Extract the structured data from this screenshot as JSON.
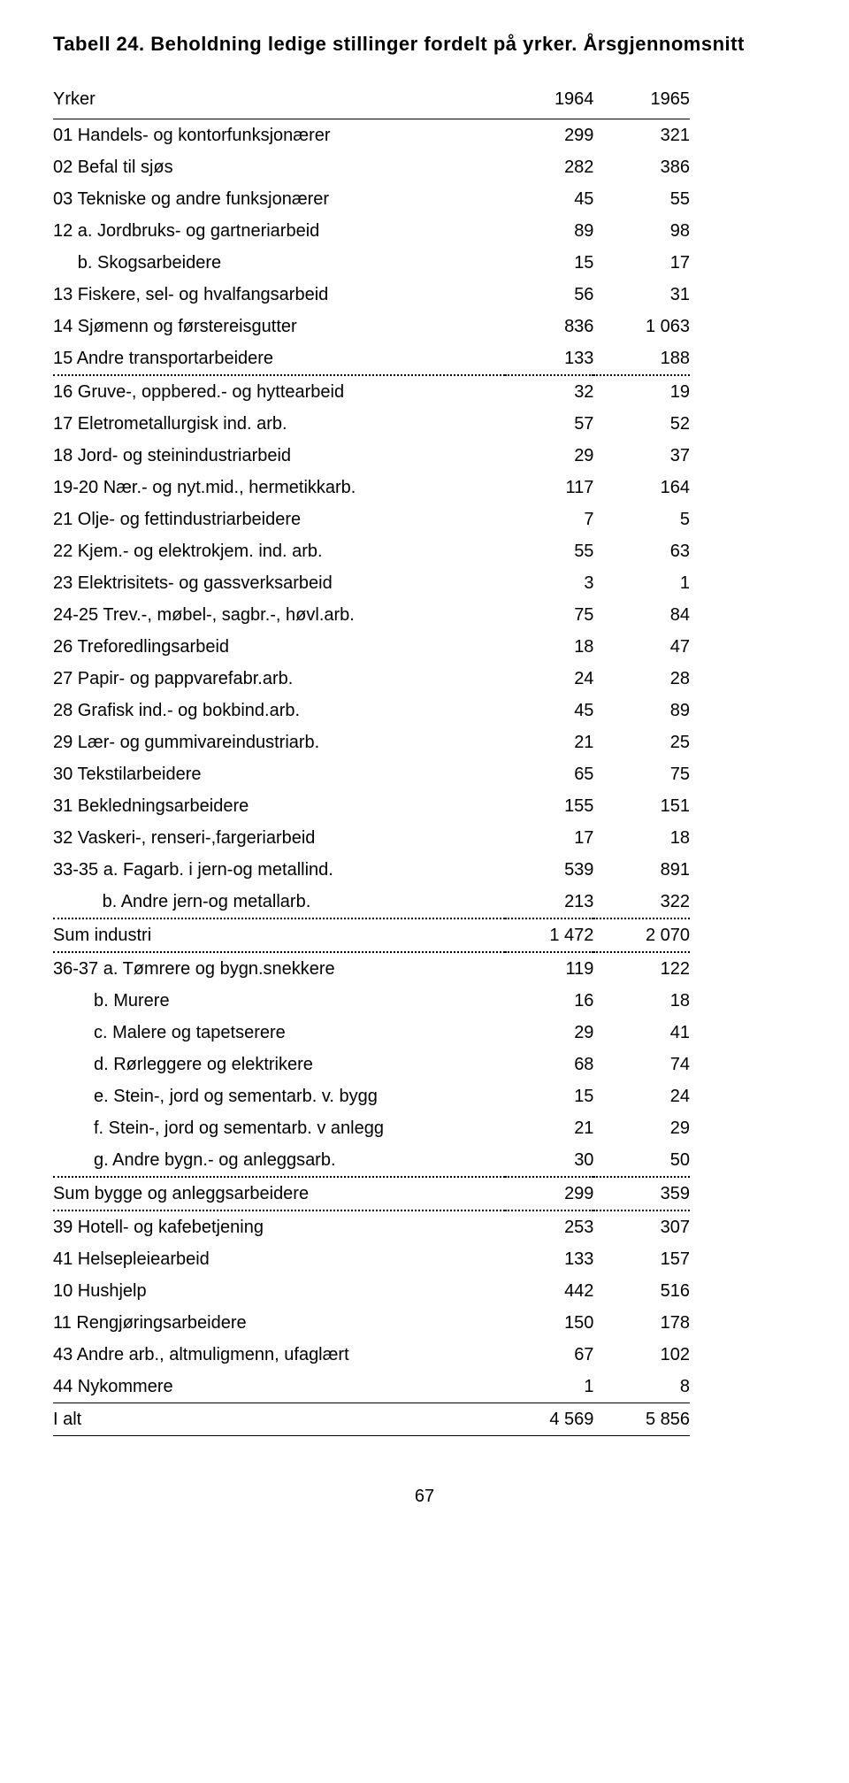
{
  "title": "Tabell 24. Beholdning ledige stillinger fordelt på yrker. Årsgjennomsnitt",
  "header": {
    "c0": "Yrker",
    "c1": "1964",
    "c2": "1965"
  },
  "rows": [
    {
      "label": "01 Handels- og kontorfunksjonærer",
      "v1": "299",
      "v2": "321"
    },
    {
      "label": "02 Befal til sjøs",
      "v1": "282",
      "v2": "386"
    },
    {
      "label": "03 Tekniske og andre funksjonærer",
      "v1": "45",
      "v2": "55"
    },
    {
      "label": "12 a. Jordbruks- og gartneriarbeid",
      "v1": "89",
      "v2": "98"
    },
    {
      "label": "     b. Skogsarbeidere",
      "v1": "15",
      "v2": "17"
    },
    {
      "label": "13 Fiskere, sel- og hvalfangsarbeid",
      "v1": "56",
      "v2": "31"
    },
    {
      "label": "14 Sjømenn og førstereisgutter",
      "v1": "836",
      "v2": "1 063"
    },
    {
      "label": "15 Andre transportarbeidere",
      "v1": "133",
      "v2": "188",
      "dotted": true
    },
    {
      "label": "16 Gruve-, oppbered.- og hyttearbeid",
      "v1": "32",
      "v2": "19"
    },
    {
      "label": "17 Eletrometallurgisk ind. arb.",
      "v1": "57",
      "v2": "52"
    },
    {
      "label": "18 Jord- og steinindustriarbeid",
      "v1": "29",
      "v2": "37"
    },
    {
      "label": "19-20 Nær.- og nyt.mid., hermetikkarb.",
      "v1": "117",
      "v2": "164"
    },
    {
      "label": "21 Olje- og fettindustriarbeidere",
      "v1": "7",
      "v2": "5"
    },
    {
      "label": "22 Kjem.- og elektrokjem. ind. arb.",
      "v1": "55",
      "v2": "63"
    },
    {
      "label": "23 Elektrisitets- og gassverksarbeid",
      "v1": "3",
      "v2": "1"
    },
    {
      "label": "24-25 Trev.-, møbel-, sagbr.-, høvl.arb.",
      "v1": "75",
      "v2": "84"
    },
    {
      "label": "26 Treforedlingsarbeid",
      "v1": "18",
      "v2": "47"
    },
    {
      "label": "27 Papir- og pappvarefabr.arb.",
      "v1": "24",
      "v2": "28"
    },
    {
      "label": "28 Grafisk ind.- og bokbind.arb.",
      "v1": "45",
      "v2": "89"
    },
    {
      "label": "29 Lær- og gummivareindustriarb.",
      "v1": "21",
      "v2": "25"
    },
    {
      "label": "30 Tekstilarbeidere",
      "v1": "65",
      "v2": "75"
    },
    {
      "label": "31 Bekledningsarbeidere",
      "v1": "155",
      "v2": "151"
    },
    {
      "label": "32 Vaskeri-, renseri-,fargeriarbeid",
      "v1": "17",
      "v2": "18"
    },
    {
      "label": "33-35 a. Fagarb. i jern-og metallind.",
      "v1": "539",
      "v2": "891"
    },
    {
      "label": "          b. Andre jern-og metallarb.",
      "v1": "213",
      "v2": "322",
      "dotted": true
    },
    {
      "label": "Sum industri",
      "v1": "1 472",
      "v2": "2 070",
      "dotted": true
    },
    {
      "label": "36-37 a. Tømrere og bygn.snekkere",
      "v1": "119",
      "v2": "122"
    },
    {
      "label": "b. Murere",
      "v1": "16",
      "v2": "18",
      "indent": true
    },
    {
      "label": "c. Malere og tapetserere",
      "v1": "29",
      "v2": "41",
      "indent": true
    },
    {
      "label": "d. Rørleggere og elektrikere",
      "v1": "68",
      "v2": "74",
      "indent": true
    },
    {
      "label": "e. Stein-, jord og sementarb. v. bygg",
      "v1": "15",
      "v2": "24",
      "indent": true
    },
    {
      "label": "f. Stein-, jord og sementarb. v anlegg",
      "v1": "21",
      "v2": "29",
      "indent": true
    },
    {
      "label": "g. Andre bygn.- og anleggsarb.",
      "v1": "30",
      "v2": "50",
      "indent": true,
      "dotted": true
    },
    {
      "label": "Sum bygge og anleggsarbeidere",
      "v1": "299",
      "v2": "359",
      "dotted": true
    },
    {
      "label": "39 Hotell- og kafebetjening",
      "v1": "253",
      "v2": "307"
    },
    {
      "label": "41 Helsepleiearbeid",
      "v1": "133",
      "v2": "157"
    },
    {
      "label": "10 Hushjelp",
      "v1": "442",
      "v2": "516"
    },
    {
      "label": "11 Rengjøringsarbeidere",
      "v1": "150",
      "v2": "178"
    },
    {
      "label": "43 Andre arb., altmuligmenn, ufaglært",
      "v1": "67",
      "v2": "102"
    },
    {
      "label": "44 Nykommere",
      "v1": "1",
      "v2": "8"
    }
  ],
  "total": {
    "label": "I alt",
    "v1": "4 569",
    "v2": "5 856"
  },
  "pageNumber": "67"
}
